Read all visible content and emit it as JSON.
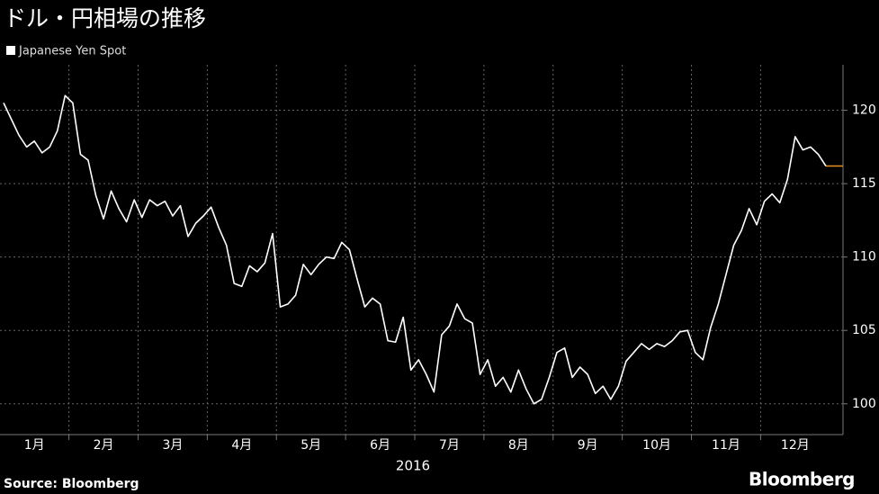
{
  "chart_data": {
    "type": "line",
    "title": "ドル・円相場の推移",
    "series": [
      {
        "name": "Japanese Yen Spot",
        "color": "#ffffff",
        "values": [
          120.5,
          119.4,
          118.3,
          117.5,
          117.9,
          117.1,
          117.5,
          118.6,
          121.0,
          120.5,
          117.0,
          116.6,
          114.2,
          112.6,
          114.5,
          113.3,
          112.4,
          113.9,
          112.7,
          113.9,
          113.5,
          113.8,
          112.8,
          113.5,
          111.4,
          112.3,
          112.8,
          113.4,
          112.0,
          110.8,
          108.2,
          108.0,
          109.4,
          109.0,
          109.6,
          111.6,
          106.6,
          106.8,
          107.4,
          109.5,
          108.8,
          109.5,
          110.0,
          109.9,
          111.0,
          110.5,
          108.5,
          106.6,
          107.2,
          106.8,
          104.3,
          104.2,
          105.9,
          102.3,
          103.0,
          102.0,
          100.8,
          104.7,
          105.3,
          106.8,
          105.8,
          105.5,
          102.0,
          103.0,
          101.2,
          101.8,
          100.8,
          102.3,
          101.0,
          100.0,
          100.3,
          101.8,
          103.5,
          103.8,
          101.8,
          102.5,
          102.0,
          100.7,
          101.2,
          100.3,
          101.2,
          102.9,
          103.5,
          104.1,
          103.7,
          104.1,
          103.9,
          104.3,
          104.9,
          105.0,
          103.5,
          103.0,
          105.2,
          106.8,
          108.8,
          110.8,
          111.8,
          113.3,
          112.2,
          113.8,
          114.3,
          113.7,
          115.3,
          118.2,
          117.3,
          117.5,
          117.0,
          116.2
        ]
      }
    ],
    "categories": [
      null,
      null,
      null,
      null,
      "1月",
      null,
      null,
      null,
      null,
      null,
      null,
      null,
      null,
      "2月",
      null,
      null,
      null,
      null,
      null,
      null,
      null,
      null,
      "3月",
      null,
      null,
      null,
      null,
      null,
      null,
      null,
      null,
      "4月",
      null,
      null,
      null,
      null,
      null,
      null,
      null,
      null,
      "5月",
      null,
      null,
      null,
      null,
      null,
      null,
      null,
      null,
      "6月",
      null,
      null,
      null,
      null,
      null,
      null,
      null,
      null,
      "7月",
      null,
      null,
      null,
      null,
      null,
      null,
      null,
      null,
      "8月",
      null,
      null,
      null,
      null,
      null,
      null,
      null,
      null,
      "9月",
      null,
      null,
      null,
      null,
      null,
      null,
      null,
      null,
      "10月",
      null,
      null,
      null,
      null,
      null,
      null,
      null,
      null,
      "11月",
      null,
      null,
      null,
      null,
      null,
      null,
      null,
      null,
      "12月",
      null,
      null,
      null,
      null
    ],
    "xlabel": "2016",
    "ylim": [
      97.9,
      123.1
    ],
    "yticks": [
      100,
      105,
      110,
      115,
      120
    ],
    "grid": true,
    "last_value_color": "#e8921f",
    "source": "Source:  Bloomberg",
    "brand": "Bloomberg"
  }
}
